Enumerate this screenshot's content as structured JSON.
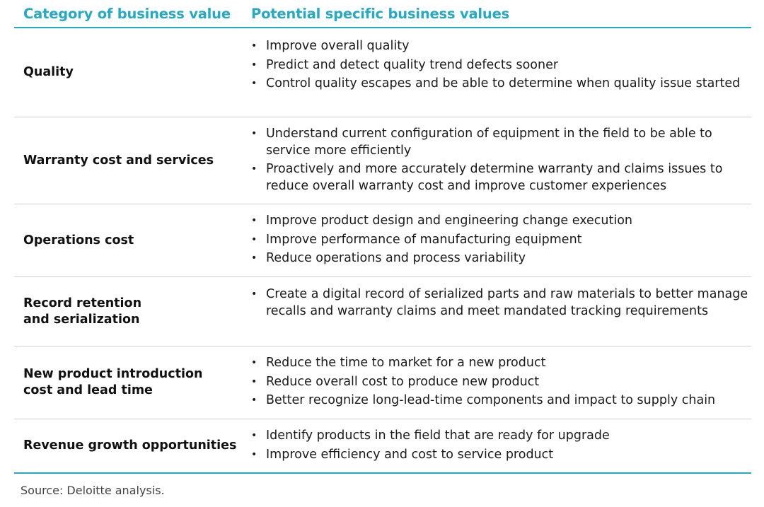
{
  "header": {
    "col1": "Category of business value",
    "col2": "Potential specific business values"
  },
  "rows": [
    {
      "category": "Quality",
      "values": [
        "Improve overall quality",
        "Predict and detect quality trend defects sooner",
        "Control quality escapes and be able to determine when quality issue started"
      ]
    },
    {
      "category": "Warranty cost and services",
      "values": [
        "Understand current configuration of equipment in the field to be able to service more efficiently",
        "Proactively and more accurately determine warranty and claims issues to reduce overall warranty cost and improve customer experiences"
      ]
    },
    {
      "category": "Operations cost",
      "values": [
        "Improve product design and engineering change execution",
        "Improve performance of manufacturing equipment",
        "Reduce operations and process variability"
      ]
    },
    {
      "category": "Record retention and serialization",
      "values": [
        "Create a digital record of serialized parts and raw materials to better manage recalls and warranty claims and meet mandated tracking requirements"
      ]
    },
    {
      "category": "New product introduction cost and lead time",
      "values": [
        "Reduce the time to market for a new product",
        "Reduce overall cost to produce new product",
        "Better recognize long-lead-time components and impact to supply chain"
      ]
    },
    {
      "category": "Revenue growth opportunities",
      "values": [
        "Identify products in the field that are ready for upgrade",
        "Improve efficiency and cost to service product"
      ]
    }
  ],
  "source": "Source: Deloitte analysis.",
  "colors": {
    "accent": "#26a9c3",
    "divider": "#cfcfcf"
  }
}
